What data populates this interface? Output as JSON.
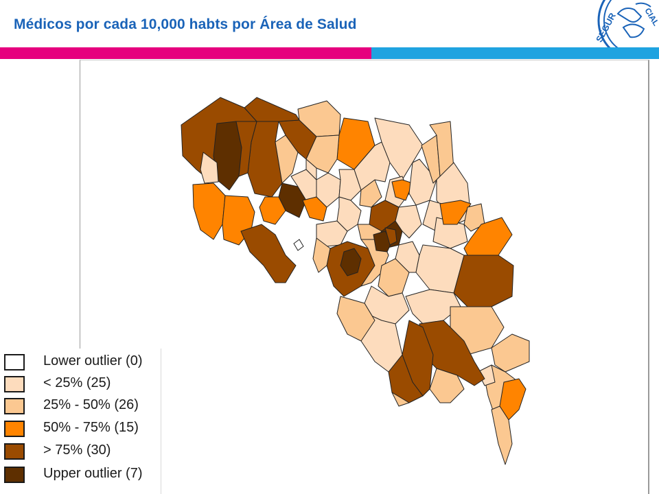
{
  "header": {
    "title": "Médicos por cada 10,000 habts por Área de Salud",
    "logo_text": "SEGURO SOCIAL"
  },
  "colors": {
    "pink_bar": "#e6007e",
    "blue_bar": "#1fa3e0",
    "title": "#1a63b8",
    "lower_outlier": "#ffffff",
    "q1": "#fddcbd",
    "q2": "#fbc891",
    "q3": "#ff8400",
    "q4": "#9a4b00",
    "upper_outlier": "#5e2f00"
  },
  "legend": {
    "items": [
      {
        "label": "Lower outlier (0)",
        "color": "#ffffff"
      },
      {
        "label": "< 25% (25)",
        "color": "#fddcbd"
      },
      {
        "label": "25% - 50% (26)",
        "color": "#fbc891"
      },
      {
        "label": "50% - 75% (15)",
        "color": "#ff8400"
      },
      {
        "label": "> 75% (30)",
        "color": "#9a4b00"
      },
      {
        "label": "Upper outlier (7)",
        "color": "#5e2f00"
      }
    ]
  }
}
